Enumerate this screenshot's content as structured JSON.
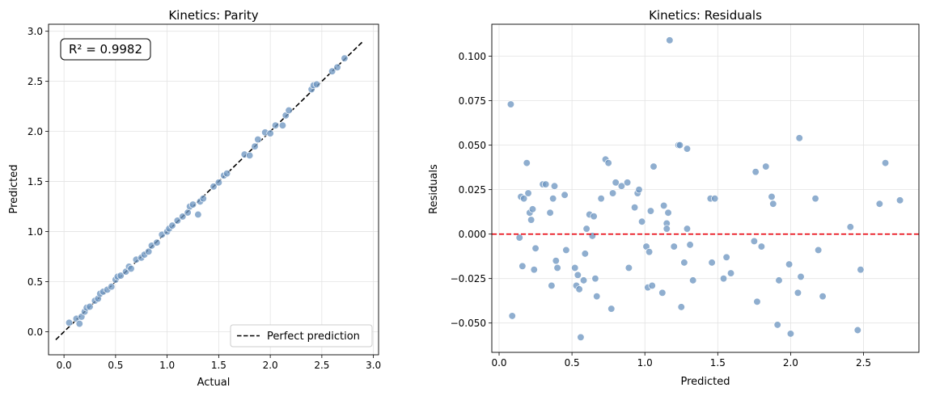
{
  "chart_data": [
    {
      "type": "scatter",
      "title": "Kinetics: Parity",
      "xlabel": "Actual",
      "ylabel": "Predicted",
      "xlim": [
        -0.15,
        3.05
      ],
      "ylim": [
        -0.23,
        3.07
      ],
      "xticks": [
        0.0,
        0.5,
        1.0,
        1.5,
        2.0,
        2.5,
        3.0
      ],
      "xtick_labels": [
        "0.0",
        "0.5",
        "1.0",
        "1.5",
        "2.0",
        "2.5",
        "3.0"
      ],
      "yticks": [
        0.0,
        0.5,
        1.0,
        1.5,
        2.0,
        2.5,
        3.0
      ],
      "ytick_labels": [
        "0.0",
        "0.5",
        "1.0",
        "1.5",
        "2.0",
        "2.5",
        "3.0"
      ],
      "grid": true,
      "annotation": "R² = 0.9982",
      "legend": {
        "entries": [
          "Perfect prediction"
        ],
        "placement": "lower-right"
      },
      "reference_line": {
        "x": [
          -0.08,
          2.9
        ],
        "y": [
          -0.08,
          2.9
        ],
        "style": "dashed",
        "color": "#000000"
      },
      "point_color": "#6f97c2",
      "points": [
        [
          0.05,
          0.09
        ],
        [
          0.12,
          0.13
        ],
        [
          0.15,
          0.08
        ],
        [
          0.17,
          0.15
        ],
        [
          0.2,
          0.2
        ],
        [
          0.22,
          0.24
        ],
        [
          0.25,
          0.25
        ],
        [
          0.3,
          0.31
        ],
        [
          0.33,
          0.33
        ],
        [
          0.35,
          0.38
        ],
        [
          0.38,
          0.4
        ],
        [
          0.42,
          0.42
        ],
        [
          0.46,
          0.45
        ],
        [
          0.5,
          0.52
        ],
        [
          0.52,
          0.55
        ],
        [
          0.55,
          0.56
        ],
        [
          0.6,
          0.6
        ],
        [
          0.63,
          0.65
        ],
        [
          0.65,
          0.63
        ],
        [
          0.7,
          0.72
        ],
        [
          0.75,
          0.74
        ],
        [
          0.78,
          0.77
        ],
        [
          0.82,
          0.8
        ],
        [
          0.85,
          0.86
        ],
        [
          0.9,
          0.89
        ],
        [
          0.95,
          0.97
        ],
        [
          1.0,
          1.0
        ],
        [
          1.02,
          1.03
        ],
        [
          1.05,
          1.06
        ],
        [
          1.1,
          1.11
        ],
        [
          1.15,
          1.15
        ],
        [
          1.2,
          1.19
        ],
        [
          1.22,
          1.25
        ],
        [
          1.25,
          1.27
        ],
        [
          1.3,
          1.17
        ],
        [
          1.32,
          1.3
        ],
        [
          1.35,
          1.33
        ],
        [
          1.45,
          1.45
        ],
        [
          1.5,
          1.49
        ],
        [
          1.55,
          1.56
        ],
        [
          1.58,
          1.58
        ],
        [
          1.75,
          1.77
        ],
        [
          1.8,
          1.76
        ],
        [
          1.85,
          1.85
        ],
        [
          1.88,
          1.92
        ],
        [
          1.95,
          1.99
        ],
        [
          2.0,
          1.98
        ],
        [
          2.05,
          2.06
        ],
        [
          2.12,
          2.06
        ],
        [
          2.15,
          2.16
        ],
        [
          2.18,
          2.21
        ],
        [
          2.4,
          2.42
        ],
        [
          2.42,
          2.46
        ],
        [
          2.45,
          2.47
        ],
        [
          2.6,
          2.6
        ],
        [
          2.65,
          2.64
        ],
        [
          2.72,
          2.73
        ]
      ]
    },
    {
      "type": "scatter",
      "title": "Kinetics: Residuals",
      "xlabel": "Predicted",
      "ylabel": "Residuals",
      "xlim": [
        -0.05,
        2.88
      ],
      "ylim": [
        -0.0665,
        0.118
      ],
      "xticks": [
        0.0,
        0.5,
        1.0,
        1.5,
        2.0,
        2.5
      ],
      "xtick_labels": [
        "0.0",
        "0.5",
        "1.0",
        "1.5",
        "2.0",
        "2.5"
      ],
      "yticks": [
        -0.05,
        -0.025,
        0.0,
        0.025,
        0.05,
        0.075,
        0.1
      ],
      "ytick_labels": [
        "−0.050",
        "−0.025",
        "0.000",
        "0.025",
        "0.050",
        "0.075",
        "0.100"
      ],
      "grid": true,
      "reference_line": {
        "y": 0.0,
        "style": "dashed",
        "color": "#e8000b"
      },
      "point_color": "#6f97c2",
      "points": [
        [
          0.08,
          0.073
        ],
        [
          0.09,
          -0.046
        ],
        [
          0.14,
          -0.002
        ],
        [
          0.15,
          0.021
        ],
        [
          0.16,
          -0.018
        ],
        [
          0.17,
          0.02
        ],
        [
          0.19,
          0.04
        ],
        [
          0.2,
          0.023
        ],
        [
          0.21,
          0.012
        ],
        [
          0.22,
          0.008
        ],
        [
          0.23,
          0.014
        ],
        [
          0.24,
          -0.02
        ],
        [
          0.25,
          -0.008
        ],
        [
          0.3,
          0.028
        ],
        [
          0.32,
          0.028
        ],
        [
          0.35,
          0.012
        ],
        [
          0.36,
          -0.029
        ],
        [
          0.37,
          0.02
        ],
        [
          0.38,
          0.027
        ],
        [
          0.39,
          -0.015
        ],
        [
          0.4,
          -0.019
        ],
        [
          0.45,
          0.022
        ],
        [
          0.46,
          -0.009
        ],
        [
          0.52,
          -0.019
        ],
        [
          0.53,
          -0.029
        ],
        [
          0.54,
          -0.023
        ],
        [
          0.55,
          -0.031
        ],
        [
          0.56,
          -0.058
        ],
        [
          0.58,
          -0.026
        ],
        [
          0.59,
          -0.011
        ],
        [
          0.6,
          0.003
        ],
        [
          0.62,
          0.011
        ],
        [
          0.64,
          -0.001
        ],
        [
          0.65,
          0.01
        ],
        [
          0.66,
          -0.025
        ],
        [
          0.67,
          -0.035
        ],
        [
          0.7,
          0.02
        ],
        [
          0.73,
          0.042
        ],
        [
          0.75,
          0.04
        ],
        [
          0.77,
          -0.042
        ],
        [
          0.78,
          0.023
        ],
        [
          0.8,
          0.029
        ],
        [
          0.84,
          0.027
        ],
        [
          0.88,
          0.029
        ],
        [
          0.89,
          -0.019
        ],
        [
          0.93,
          0.015
        ],
        [
          0.95,
          0.023
        ],
        [
          0.96,
          0.025
        ],
        [
          0.98,
          0.007
        ],
        [
          1.01,
          -0.007
        ],
        [
          1.02,
          -0.03
        ],
        [
          1.03,
          -0.01
        ],
        [
          1.04,
          0.013
        ],
        [
          1.05,
          -0.029
        ],
        [
          1.06,
          0.038
        ],
        [
          1.12,
          -0.033
        ],
        [
          1.13,
          0.016
        ],
        [
          1.15,
          0.006
        ],
        [
          1.15,
          0.003
        ],
        [
          1.16,
          0.012
        ],
        [
          1.17,
          0.109
        ],
        [
          1.2,
          -0.007
        ],
        [
          1.23,
          0.05
        ],
        [
          1.24,
          0.05
        ],
        [
          1.25,
          -0.041
        ],
        [
          1.27,
          -0.016
        ],
        [
          1.29,
          0.048
        ],
        [
          1.29,
          0.003
        ],
        [
          1.31,
          -0.006
        ],
        [
          1.33,
          -0.026
        ],
        [
          1.45,
          0.02
        ],
        [
          1.46,
          -0.016
        ],
        [
          1.48,
          0.02
        ],
        [
          1.54,
          -0.025
        ],
        [
          1.56,
          -0.013
        ],
        [
          1.59,
          -0.022
        ],
        [
          1.75,
          -0.004
        ],
        [
          1.76,
          0.035
        ],
        [
          1.77,
          -0.038
        ],
        [
          1.8,
          -0.007
        ],
        [
          1.83,
          0.038
        ],
        [
          1.87,
          0.021
        ],
        [
          1.88,
          0.017
        ],
        [
          1.91,
          -0.051
        ],
        [
          1.92,
          -0.026
        ],
        [
          1.99,
          -0.017
        ],
        [
          2.0,
          -0.056
        ],
        [
          2.05,
          -0.033
        ],
        [
          2.06,
          0.054
        ],
        [
          2.07,
          -0.024
        ],
        [
          2.17,
          0.02
        ],
        [
          2.19,
          -0.009
        ],
        [
          2.22,
          -0.035
        ],
        [
          2.41,
          0.004
        ],
        [
          2.46,
          -0.054
        ],
        [
          2.48,
          -0.02
        ],
        [
          2.61,
          0.017
        ],
        [
          2.65,
          0.04
        ],
        [
          2.75,
          0.019
        ]
      ]
    }
  ]
}
